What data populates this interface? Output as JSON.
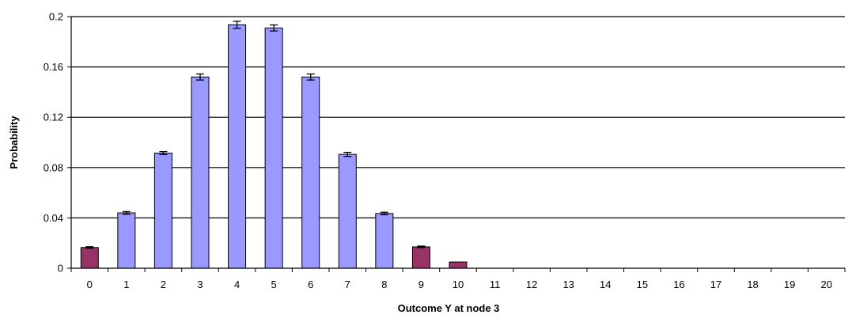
{
  "chart_data": {
    "type": "bar",
    "xlabel": "Outcome Y at node 3",
    "ylabel": "Probability",
    "ylim": [
      0,
      0.2
    ],
    "yticks": [
      "0",
      "0.04",
      "0.08",
      "0.12",
      "0.16",
      "0.2"
    ],
    "grid": true,
    "categories": [
      "0",
      "1",
      "2",
      "3",
      "4",
      "5",
      "6",
      "7",
      "8",
      "9",
      "10",
      "11",
      "12",
      "13",
      "14",
      "15",
      "16",
      "17",
      "18",
      "19",
      "20"
    ],
    "values": [
      0.0165,
      0.044,
      0.0915,
      0.152,
      0.1935,
      0.191,
      0.152,
      0.0905,
      0.0435,
      0.017,
      0.005,
      0,
      0,
      0,
      0,
      0,
      0,
      0,
      0,
      0,
      0
    ],
    "errors": [
      0.0006,
      0.001,
      0.0012,
      0.0024,
      0.0028,
      0.0024,
      0.0024,
      0.0016,
      0.001,
      0.0006,
      0,
      0,
      0,
      0,
      0,
      0,
      0,
      0,
      0,
      0,
      0
    ],
    "bar_colors": [
      "#993366",
      "#9999ff",
      "#9999ff",
      "#9999ff",
      "#9999ff",
      "#9999ff",
      "#9999ff",
      "#9999ff",
      "#9999ff",
      "#993366",
      "#993366",
      "#993366",
      "#993366",
      "#993366",
      "#993366",
      "#993366",
      "#993366",
      "#993366",
      "#993366",
      "#993366",
      "#993366"
    ]
  }
}
